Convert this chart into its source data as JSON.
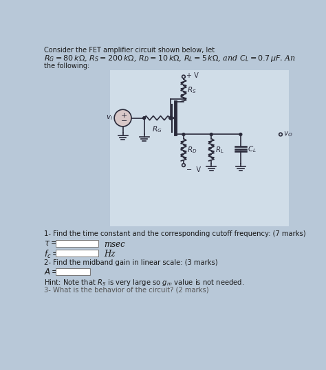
{
  "page_bg": "#b8c8d8",
  "circuit_bg": "#d0dde8",
  "title_line1": "Consider the FET amplifier circuit shown below, let",
  "title_line2": "$R_G = 80\\,k\\Omega$, $R_S = 200\\,k\\Omega$, $R_D = 10\\,k\\Omega$, $R_L = 5\\,k\\Omega$, and $C_L = 0.7\\,\\mu F$. An",
  "title_line3": "the following:",
  "q1": "1- Find the time constant and the corresponding cutoff frequency: (7 marks)",
  "tau_label": "$\\tau =$",
  "tau_unit": "msec",
  "fc_label": "$f_c =$",
  "fc_unit": "Hz",
  "q2": "2- Find the midband gain in linear scale: (3 marks)",
  "A_label": "$A =$",
  "hint": "Hint: Note that $R_S$ is very large so $g_m$ value is not needed.",
  "q3": "3- What is the behavior of the circuit? (2 marks)",
  "line_color": "#2a2a3a",
  "text_color": "#1a1a1a"
}
